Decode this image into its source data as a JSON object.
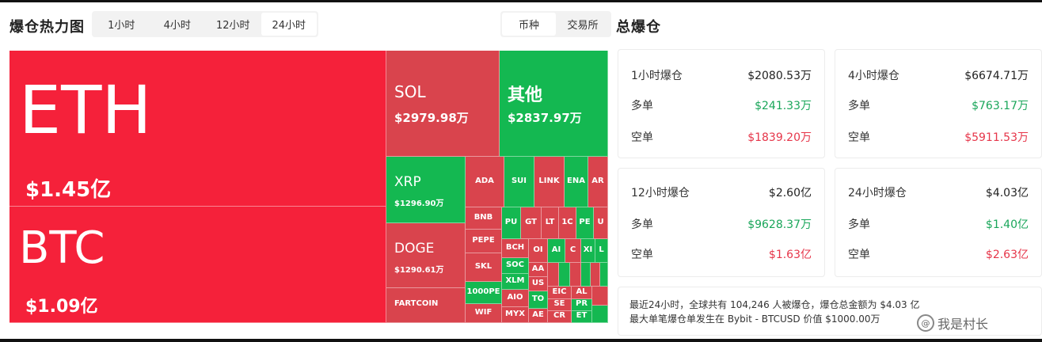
{
  "heatmap": {
    "title": "爆仓热力图",
    "time_tabs": [
      "1小时",
      "4小时",
      "12小时",
      "24小时"
    ],
    "active_time_tab": 3,
    "mode_tabs": [
      "币种",
      "交易所"
    ],
    "active_mode_tab": 0
  },
  "treemap": {
    "tiles": [
      {
        "sym": "ETH",
        "val": "$1.45亿"
      },
      {
        "sym": "BTC",
        "val": "$1.09亿"
      },
      {
        "sym": "SOL",
        "val": "$2979.98万"
      },
      {
        "sym": "其他",
        "val": "$2837.97万"
      },
      {
        "sym": "XRP",
        "val": "$1296.90万"
      },
      {
        "sym": "DOGE",
        "val": "$1290.61万"
      },
      {
        "sym": "FARTCOIN",
        "val": ""
      },
      {
        "sym": "ADA"
      },
      {
        "sym": "SUI"
      },
      {
        "sym": "LINK"
      },
      {
        "sym": "ENA"
      },
      {
        "sym": "AR"
      },
      {
        "sym": "BNB"
      },
      {
        "sym": "PEPE"
      },
      {
        "sym": "SKL"
      },
      {
        "sym": "1000PE"
      },
      {
        "sym": "WIF"
      },
      {
        "sym": "PU"
      },
      {
        "sym": "GT"
      },
      {
        "sym": "LT"
      },
      {
        "sym": "1C"
      },
      {
        "sym": "PE"
      },
      {
        "sym": "U"
      },
      {
        "sym": "BCH"
      },
      {
        "sym": "SOC"
      },
      {
        "sym": "XLM"
      },
      {
        "sym": "AIO"
      },
      {
        "sym": "MYX"
      },
      {
        "sym": "OI"
      },
      {
        "sym": "AI"
      },
      {
        "sym": "C"
      },
      {
        "sym": "XI"
      },
      {
        "sym": "L"
      },
      {
        "sym": "AA"
      },
      {
        "sym": "US"
      },
      {
        "sym": "TO"
      },
      {
        "sym": "AE"
      },
      {
        "sym": "EIC"
      },
      {
        "sym": "SE"
      },
      {
        "sym": "CR"
      },
      {
        "sym": "AL"
      },
      {
        "sym": "PR"
      },
      {
        "sym": "ET"
      }
    ]
  },
  "total": {
    "title": "总爆仓",
    "cards": [
      {
        "head_label": "1小时爆仓",
        "head_value": "$2080.53万",
        "long_label": "多单",
        "long_value": "$241.33万",
        "short_label": "空单",
        "short_value": "$1839.20万"
      },
      {
        "head_label": "4小时爆仓",
        "head_value": "$6674.71万",
        "long_label": "多单",
        "long_value": "$763.17万",
        "short_label": "空单",
        "short_value": "$5911.53万"
      },
      {
        "head_label": "12小时爆仓",
        "head_value": "$2.60亿",
        "long_label": "多单",
        "long_value": "$9628.37万",
        "short_label": "空单",
        "short_value": "$1.63亿"
      },
      {
        "head_label": "24小时爆仓",
        "head_value": "$4.03亿",
        "long_label": "多单",
        "long_value": "$1.40亿",
        "short_label": "空单",
        "short_value": "$2.63亿"
      }
    ],
    "summary_line1": "最近24小时，全球共有 104,246 人被爆仓，爆仓总金额为 $4.03 亿",
    "summary_line2": "最大单笔爆仓单发生在 Bybit - BTCUSD 价值 $1000.00万"
  },
  "watermark": {
    "text": "我是村长",
    "icon": "watermark-logo-icon"
  }
}
